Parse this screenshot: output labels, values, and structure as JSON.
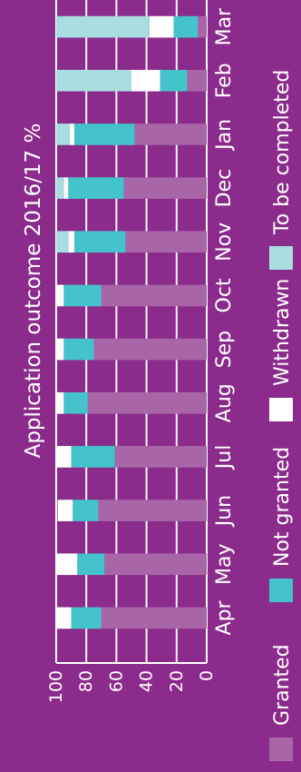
{
  "chart_data": {
    "type": "bar",
    "orientation": "stacked-100-percent",
    "title": "Application outcome 2016/17 %",
    "categories": [
      "Apr",
      "May",
      "Jun",
      "Jul",
      "Aug",
      "Sep",
      "Oct",
      "Nov",
      "Dec",
      "Jan",
      "Feb",
      "Mar"
    ],
    "series": [
      {
        "name": "Granted",
        "values": [
          70,
          68,
          72,
          61,
          79,
          75,
          70,
          54,
          55,
          48,
          13,
          6
        ]
      },
      {
        "name": "Not granted",
        "values": [
          20,
          18,
          17,
          29,
          16,
          20,
          25,
          34,
          37,
          40,
          18,
          16
        ]
      },
      {
        "name": "Withdrawn",
        "values": [
          10,
          14,
          10,
          10,
          5,
          5,
          5,
          4,
          3,
          3,
          19,
          16
        ]
      },
      {
        "name": "To be completed",
        "values": [
          0,
          0,
          0,
          0,
          0,
          0,
          0,
          8,
          5,
          9,
          50,
          62
        ]
      }
    ],
    "ylim": [
      0,
      100
    ],
    "yticks": [
      0,
      20,
      40,
      60,
      80,
      100
    ],
    "grid": true,
    "legend_position": "bottom",
    "colors": {
      "background": "#8b2b8b",
      "Granted": "#a866a8",
      "Not granted": "#45c3cc",
      "Withdrawn": "#ffffff",
      "To be completed": "#a8dde2",
      "text": "#ffffff"
    }
  }
}
